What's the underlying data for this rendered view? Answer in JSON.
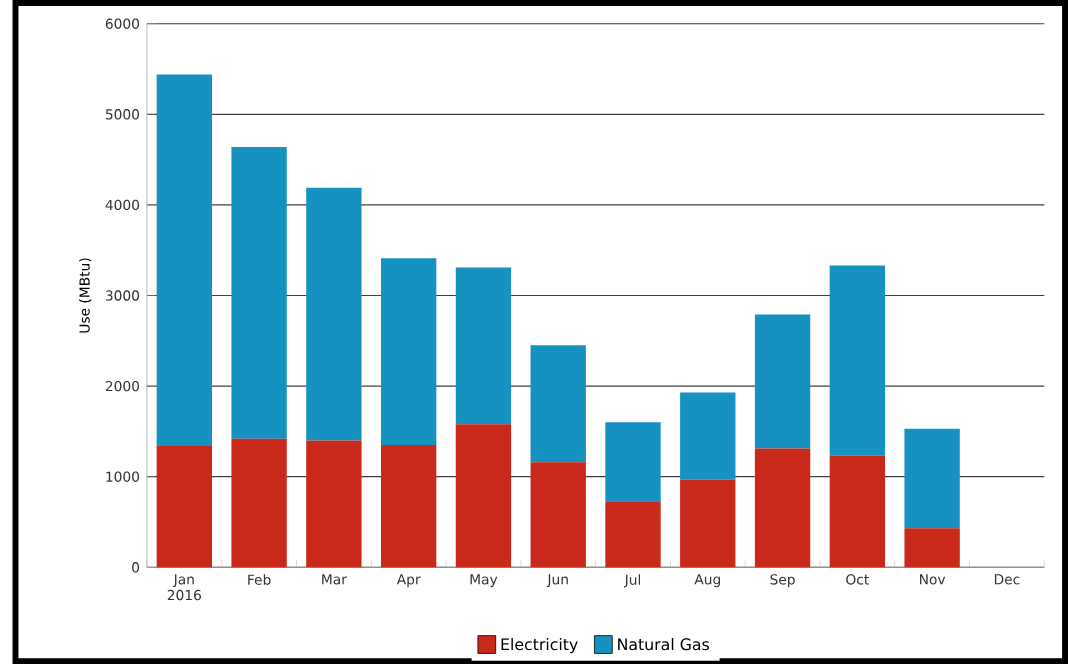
{
  "chart_data": {
    "type": "bar",
    "stacked": true,
    "ylabel": "Use (MBtu)",
    "categories": [
      "Jan 2016",
      "Feb",
      "Mar",
      "Apr",
      "May",
      "Jun",
      "Jul",
      "Aug",
      "Sep",
      "Oct",
      "Nov",
      "Dec"
    ],
    "series": [
      {
        "name": "Electricity",
        "color": "#c8291a",
        "values": [
          1340,
          1420,
          1400,
          1350,
          1580,
          1160,
          730,
          970,
          1310,
          1230,
          430,
          null
        ]
      },
      {
        "name": "Natural Gas",
        "color": "#1592bf",
        "values": [
          4100,
          3220,
          2790,
          2060,
          1730,
          1290,
          870,
          960,
          1480,
          2100,
          1100,
          null
        ]
      }
    ],
    "ylim": [
      0,
      6000
    ],
    "yticks": [
      0,
      1000,
      2000,
      3000,
      4000,
      5000,
      6000
    ],
    "grid": "y",
    "legend": "bottom"
  }
}
